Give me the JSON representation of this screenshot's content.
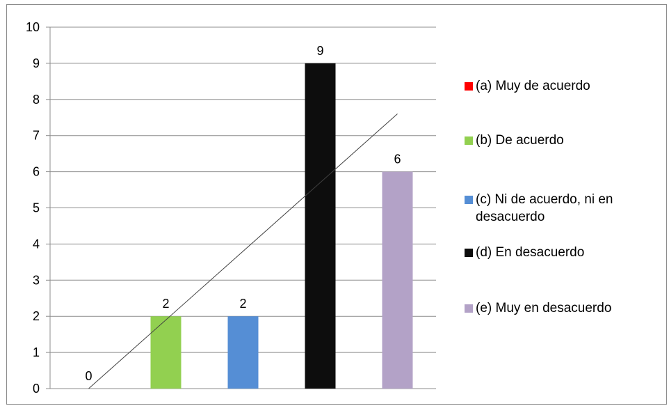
{
  "chart_data": {
    "type": "bar",
    "title": "",
    "xlabel": "",
    "ylabel": "",
    "ylim": [
      0,
      10
    ],
    "yticks": [
      "0",
      "1",
      "2",
      "3",
      "4",
      "5",
      "6",
      "7",
      "8",
      "9",
      "10"
    ],
    "grid": true,
    "legend_position": "right",
    "categories": [
      "(a)  Muy de acuerdo",
      "(b)  De acuerdo",
      "(c)  Ni de acuerdo, ni en desacuerdo",
      "(d)  En desacuerdo",
      "(e)  Muy en desacuerdo"
    ],
    "values": [
      0,
      2,
      2,
      9,
      6
    ],
    "colors": [
      "#ff0000",
      "#92d050",
      "#558ed5",
      "#0d0d0d",
      "#b3a2c7"
    ],
    "data_labels": [
      "0",
      "2",
      "2",
      "9",
      "6"
    ],
    "trendline": {
      "type": "linear",
      "color": "#404040",
      "from": [
        1,
        0
      ],
      "to": [
        5,
        7.6
      ]
    }
  },
  "legend": [
    {
      "line1": "(a)  Muy de acuerdo",
      "line2": "",
      "color": "#ff0000"
    },
    {
      "line1": "(b)  De acuerdo",
      "line2": "",
      "color": "#92d050"
    },
    {
      "line1": "(c)  Ni de acuerdo, ni en",
      "line2": "desacuerdo",
      "color": "#558ed5"
    },
    {
      "line1": "(d)  En desacuerdo",
      "line2": "",
      "color": "#0d0d0d"
    },
    {
      "line1": "(e)  Muy en desacuerdo",
      "line2": "",
      "color": "#b3a2c7"
    }
  ]
}
